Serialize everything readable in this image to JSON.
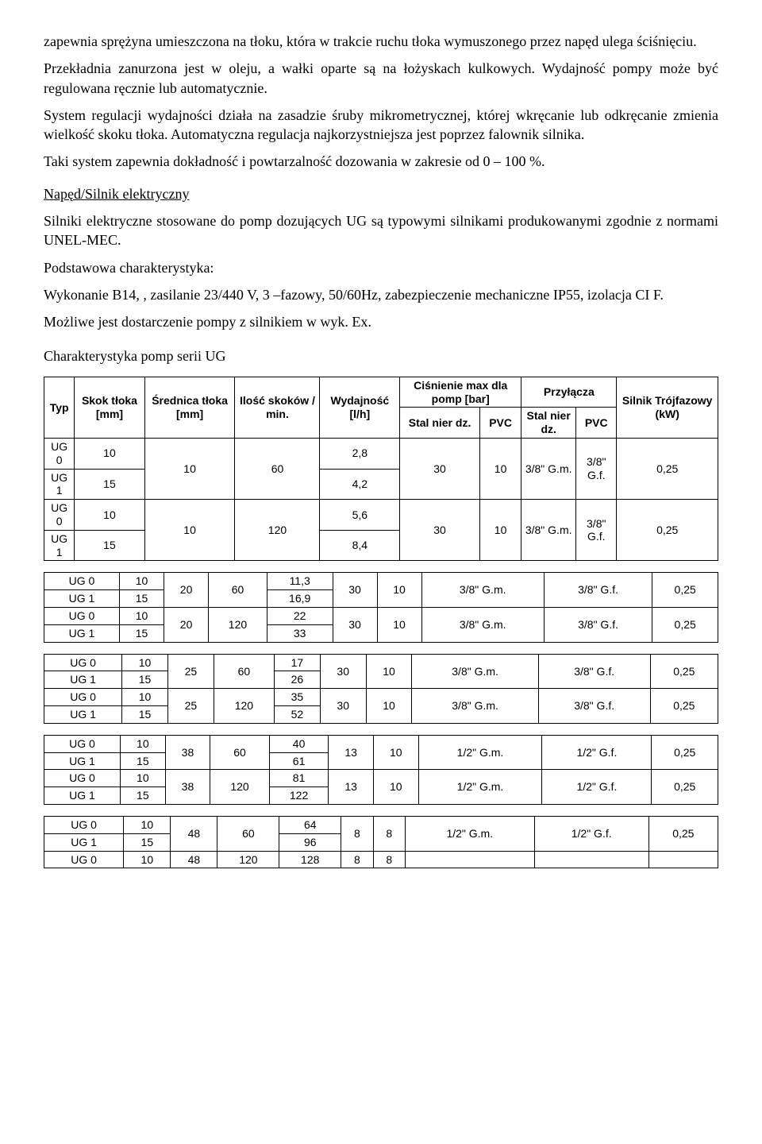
{
  "para1": "zapewnia sprężyna umieszczona na tłoku, która w trakcie ruchu tłoka wymuszonego przez napęd ulega ściśnięciu.",
  "para2": "Przekładnia zanurzona jest w oleju, a wałki oparte są na łożyskach kulkowych. Wydajność pompy może być regulowana ręcznie lub automatycznie.",
  "para3": "System regulacji wydajności działa na zasadzie śruby mikrometrycznej, której wkręcanie lub odkręcanie zmienia wielkość skoku tłoka. Automatyczna regulacja najkorzystniejsza jest poprzez falownik silnika.",
  "para4": "Taki system zapewnia dokładność i powtarzalność dozowania w zakresie od 0 – 100 %.",
  "heading1": "Napęd/Silnik elektryczny",
  "para5": "Silniki elektryczne stosowane do pomp dozujących UG są typowymi silnikami produkowanymi zgodnie z normami UNEL-MEC.",
  "para6": "Podstawowa charakterystyka:",
  "para7": "Wykonanie B14, , zasilanie 23/440 V, 3 –fazowy, 50/60Hz, zabezpieczenie mechaniczne IP55, izolacja CI F.",
  "para8": "Możliwe jest dostarczenie pompy z silnikiem w wyk. Ex.",
  "heading2": "Charakterystyka pomp serii UG",
  "headers": {
    "typ": "Typ",
    "skok": "Skok tłoka [mm]",
    "srednica": "Średnica tłoka [mm]",
    "ilosc": "Ilość skoków / min.",
    "wydajnosc": "Wydajność [l/h]",
    "cisnienie": "Ciśnienie max dla pomp [bar]",
    "przylacza": "Przyłącza",
    "silnik": "Silnik Trójfazowy (kW)",
    "stal": "Stal nier dz.",
    "pvc": "PVC"
  },
  "t1": {
    "r1": {
      "typ": "UG 0",
      "skok": "10",
      "sred": "10",
      "ilosc": "60",
      "wyd": "2,8",
      "c1": "30",
      "c2": "10",
      "p1": "3/8\" G.m.",
      "p2": "3/8\" G.f.",
      "sil": "0,25"
    },
    "r2": {
      "typ": "UG 1",
      "skok": "15",
      "wyd": "4,2"
    },
    "r3": {
      "typ": "UG 0",
      "skok": "10",
      "sred": "10",
      "ilosc": "120",
      "wyd": "5,6",
      "c1": "30",
      "c2": "10",
      "p1": "3/8\" G.m.",
      "p2": "3/8\" G.f.",
      "sil": "0,25"
    },
    "r4": {
      "typ": "UG 1",
      "skok": "15",
      "wyd": "8,4"
    }
  },
  "t2": {
    "r1": {
      "typ": "UG 0",
      "skok": "10",
      "sred": "20",
      "ilosc": "60",
      "wyd": "11,3",
      "c1": "30",
      "c2": "10",
      "p1": "3/8\" G.m.",
      "p2": "3/8\" G.f.",
      "sil": "0,25"
    },
    "r2": {
      "typ": "UG 1",
      "skok": "15",
      "wyd": "16,9"
    },
    "r3": {
      "typ": "UG 0",
      "skok": "10",
      "sred": "20",
      "ilosc": "120",
      "wyd": "22",
      "c1": "30",
      "c2": "10",
      "p1": "3/8\" G.m.",
      "p2": "3/8\" G.f.",
      "sil": "0,25"
    },
    "r4": {
      "typ": "UG 1",
      "skok": "15",
      "wyd": "33"
    }
  },
  "t3": {
    "r1": {
      "typ": "UG 0",
      "skok": "10",
      "sred": "25",
      "ilosc": "60",
      "wyd": "17",
      "c1": "30",
      "c2": "10",
      "p1": "3/8\" G.m.",
      "p2": "3/8\" G.f.",
      "sil": "0,25"
    },
    "r2": {
      "typ": "UG 1",
      "skok": "15",
      "wyd": "26"
    },
    "r3": {
      "typ": "UG 0",
      "skok": "10",
      "sred": "25",
      "ilosc": "120",
      "wyd": "35",
      "c1": "30",
      "c2": "10",
      "p1": "3/8\" G.m.",
      "p2": "3/8\" G.f.",
      "sil": "0,25"
    },
    "r4": {
      "typ": "UG 1",
      "skok": "15",
      "wyd": "52"
    }
  },
  "t4": {
    "r1": {
      "typ": "UG 0",
      "skok": "10",
      "sred": "38",
      "ilosc": "60",
      "wyd": "40",
      "c1": "13",
      "c2": "10",
      "p1": "1/2\" G.m.",
      "p2": "1/2\" G.f.",
      "sil": "0,25"
    },
    "r2": {
      "typ": "UG 1",
      "skok": "15",
      "wyd": "61"
    },
    "r3": {
      "typ": "UG 0",
      "skok": "10",
      "sred": "38",
      "ilosc": "120",
      "wyd": "81",
      "c1": "13",
      "c2": "10",
      "p1": "1/2\" G.m.",
      "p2": "1/2\" G.f.",
      "sil": "0,25"
    },
    "r4": {
      "typ": "UG 1",
      "skok": "15",
      "wyd": "122"
    }
  },
  "t5": {
    "r1": {
      "typ": "UG 0",
      "skok": "10",
      "sred": "48",
      "ilosc": "60",
      "wyd": "64",
      "c1": "8",
      "c2": "8",
      "p1": "1/2\" G.m.",
      "p2": "1/2\" G.f.",
      "sil": "0,25"
    },
    "r2": {
      "typ": "UG 1",
      "skok": "15",
      "wyd": "96"
    },
    "r3": {
      "typ": "UG 0",
      "skok": "10",
      "sred": "48",
      "ilosc": "120",
      "wyd": "128",
      "c1": "8",
      "c2": "8"
    }
  }
}
